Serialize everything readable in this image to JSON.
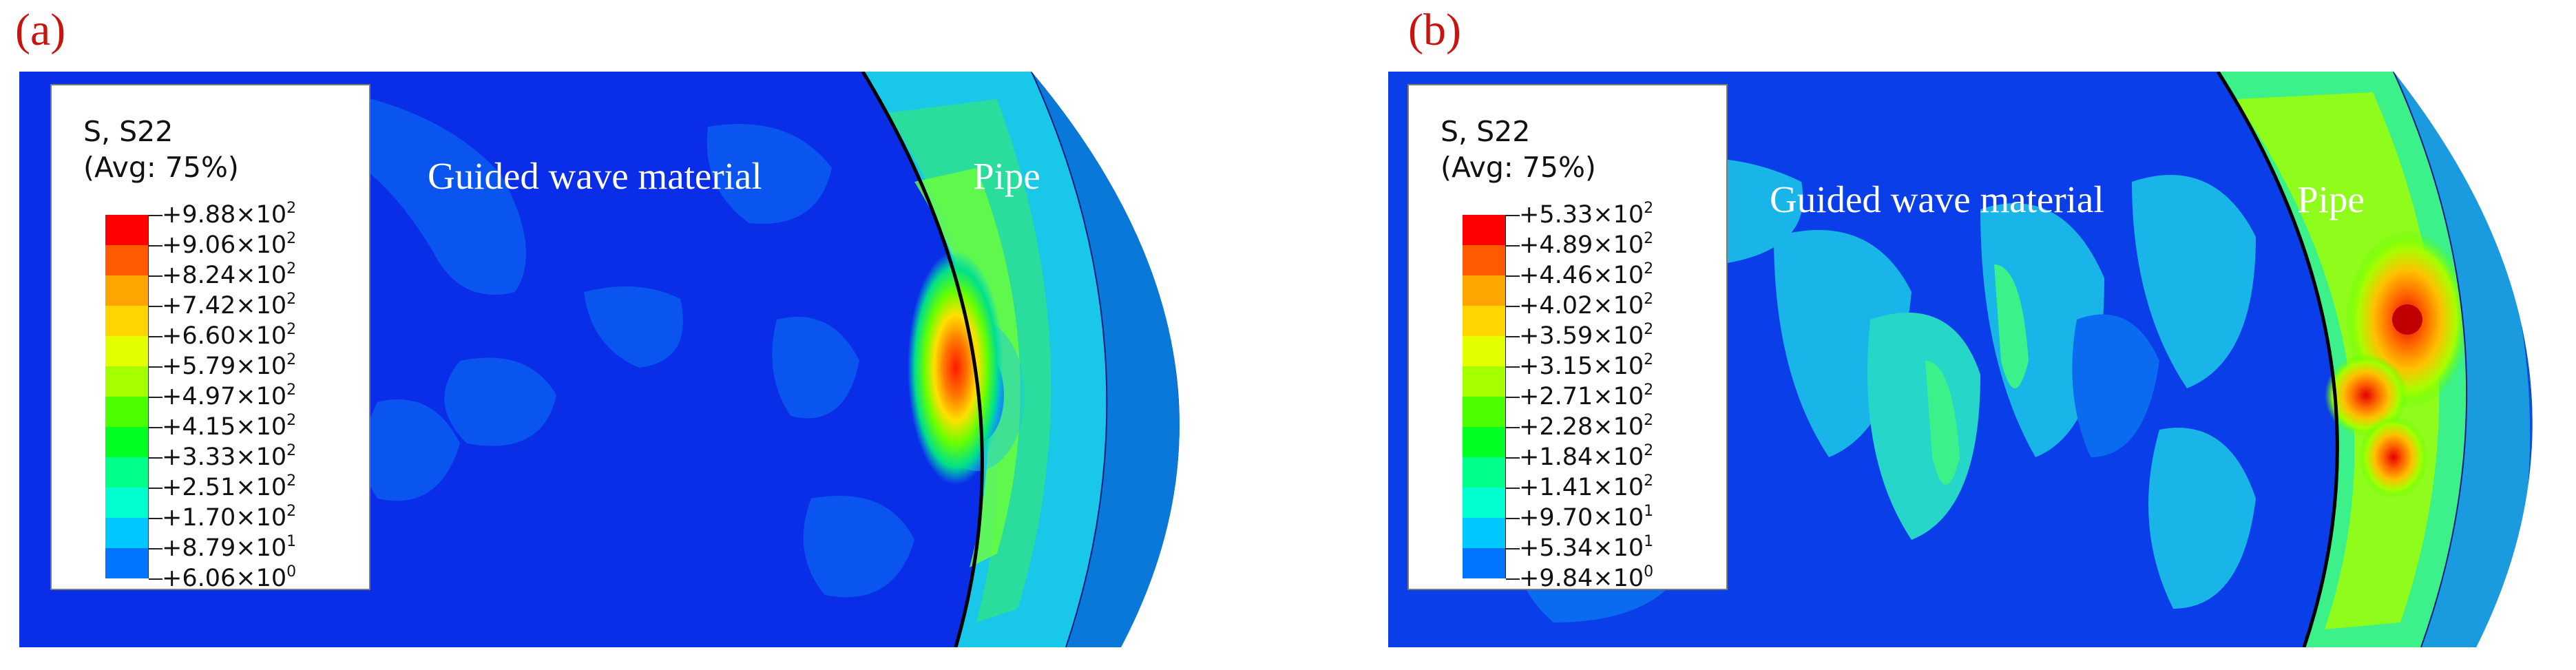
{
  "panels": [
    {
      "letter": "(a)",
      "legend": {
        "title": "S, S22",
        "avg": "(Avg: 75%)",
        "entries": [
          {
            "mantissa": "+9.88",
            "exponent": "2"
          },
          {
            "mantissa": "+9.06",
            "exponent": "2"
          },
          {
            "mantissa": "+8.24",
            "exponent": "2"
          },
          {
            "mantissa": "+7.42",
            "exponent": "2"
          },
          {
            "mantissa": "+6.60",
            "exponent": "2"
          },
          {
            "mantissa": "+5.79",
            "exponent": "2"
          },
          {
            "mantissa": "+4.97",
            "exponent": "2"
          },
          {
            "mantissa": "+4.15",
            "exponent": "2"
          },
          {
            "mantissa": "+3.33",
            "exponent": "2"
          },
          {
            "mantissa": "+2.51",
            "exponent": "2"
          },
          {
            "mantissa": "+1.70",
            "exponent": "2"
          },
          {
            "mantissa": "+8.79",
            "exponent": "1"
          },
          {
            "mantissa": "+6.06",
            "exponent": "0"
          }
        ]
      },
      "region_labels": {
        "material": "Guided wave material",
        "pipe": "Pipe"
      }
    },
    {
      "letter": "(b)",
      "legend": {
        "title": "S, S22",
        "avg": "(Avg: 75%)",
        "entries": [
          {
            "mantissa": "+5.33",
            "exponent": "2"
          },
          {
            "mantissa": "+4.89",
            "exponent": "2"
          },
          {
            "mantissa": "+4.46",
            "exponent": "2"
          },
          {
            "mantissa": "+4.02",
            "exponent": "2"
          },
          {
            "mantissa": "+3.59",
            "exponent": "2"
          },
          {
            "mantissa": "+3.15",
            "exponent": "2"
          },
          {
            "mantissa": "+2.71",
            "exponent": "2"
          },
          {
            "mantissa": "+2.28",
            "exponent": "2"
          },
          {
            "mantissa": "+1.84",
            "exponent": "2"
          },
          {
            "mantissa": "+1.41",
            "exponent": "2"
          },
          {
            "mantissa": "+9.70",
            "exponent": "1"
          },
          {
            "mantissa": "+5.34",
            "exponent": "1"
          },
          {
            "mantissa": "+9.84",
            "exponent": "0"
          }
        ]
      },
      "region_labels": {
        "material": "Guided wave material",
        "pipe": "Pipe"
      }
    }
  ],
  "times_sign": "×10",
  "colormap": [
    "#ff0000",
    "#ff5a00",
    "#ffa500",
    "#ffd500",
    "#e3ff00",
    "#a5ff00",
    "#4cff00",
    "#00ff22",
    "#00ff8a",
    "#00ffd0",
    "#00c8ff",
    "#0075ff",
    "#0019ff"
  ],
  "colors": {
    "background_blue": "#0a2ee8",
    "pipe_outer_band": "#0a4fd6",
    "pipe_edge": "#0c24c8",
    "panel_letter": "#c8140e"
  }
}
